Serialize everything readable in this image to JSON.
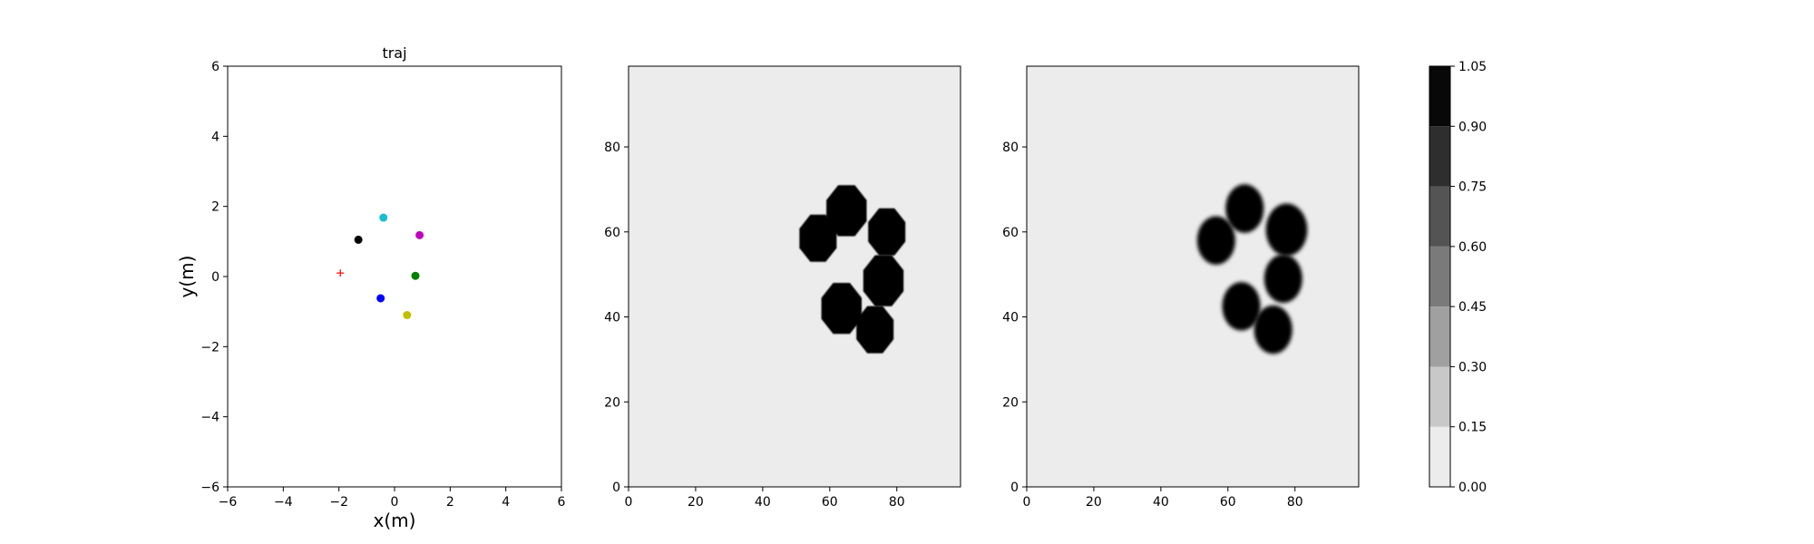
{
  "chart_data": [
    {
      "type": "scatter",
      "title": "traj",
      "xlabel": "x(m)",
      "ylabel": "y(m)",
      "xlim": [
        -6,
        6
      ],
      "ylim": [
        -6,
        6
      ],
      "xticks": [
        -6,
        -4,
        -2,
        0,
        2,
        4,
        6
      ],
      "yticks": [
        -6,
        -4,
        -2,
        0,
        2,
        4,
        6
      ],
      "points": [
        {
          "name": "cyan",
          "x": -0.4,
          "y": 1.68,
          "color": "#17becf",
          "marker": "circle"
        },
        {
          "name": "magenta",
          "x": 0.9,
          "y": 1.18,
          "color": "#bf00bf",
          "marker": "circle"
        },
        {
          "name": "black",
          "x": -1.3,
          "y": 1.05,
          "color": "#000000",
          "marker": "circle"
        },
        {
          "name": "green",
          "x": 0.75,
          "y": 0.02,
          "color": "#008000",
          "marker": "circle"
        },
        {
          "name": "blue",
          "x": -0.5,
          "y": -0.62,
          "color": "#0000ff",
          "marker": "circle"
        },
        {
          "name": "olive",
          "x": 0.45,
          "y": -1.1,
          "color": "#bfbf00",
          "marker": "circle"
        },
        {
          "name": "target",
          "x": -1.95,
          "y": 0.1,
          "color": "#ff0000",
          "marker": "plus"
        }
      ]
    },
    {
      "type": "heatmap",
      "title": "",
      "xlim": [
        0,
        99
      ],
      "ylim": [
        0,
        99
      ],
      "xticks": [
        0,
        20,
        40,
        60,
        80
      ],
      "yticks": [
        0,
        20,
        40,
        60,
        80
      ],
      "background_value": 0.05,
      "blobs": [
        {
          "x": 65,
          "y": 65,
          "r": 6.5,
          "shape": "octagon"
        },
        {
          "x": 56.5,
          "y": 58.5,
          "r": 6,
          "shape": "octagon"
        },
        {
          "x": 77,
          "y": 60,
          "r": 6,
          "shape": "octagon"
        },
        {
          "x": 76,
          "y": 48.5,
          "r": 6.5,
          "shape": "octagon"
        },
        {
          "x": 63.5,
          "y": 42,
          "r": 6.5,
          "shape": "octagon"
        },
        {
          "x": 73.5,
          "y": 37,
          "r": 6,
          "shape": "octagon"
        }
      ]
    },
    {
      "type": "heatmap",
      "title": "",
      "xlim": [
        0,
        99
      ],
      "ylim": [
        0,
        99
      ],
      "xticks": [
        0,
        20,
        40,
        60,
        80
      ],
      "yticks": [
        0,
        20,
        40,
        60,
        80
      ],
      "background_value": 0.05,
      "blobs": [
        {
          "x": 65,
          "y": 65.5,
          "r": 6,
          "shape": "blur"
        },
        {
          "x": 56.5,
          "y": 58,
          "r": 6,
          "shape": "blur"
        },
        {
          "x": 77.5,
          "y": 60.5,
          "r": 6.5,
          "shape": "blur"
        },
        {
          "x": 76.5,
          "y": 49,
          "r": 6,
          "shape": "blur"
        },
        {
          "x": 64,
          "y": 42.5,
          "r": 6,
          "shape": "blur"
        },
        {
          "x": 73.5,
          "y": 37,
          "r": 6,
          "shape": "blur"
        }
      ]
    },
    {
      "type": "colorbar",
      "levels": [
        0.0,
        0.15,
        0.3,
        0.45,
        0.6,
        0.75,
        0.9,
        1.05
      ],
      "tick_labels": [
        "0.00",
        "0.15",
        "0.30",
        "0.45",
        "0.60",
        "0.75",
        "0.90",
        "1.05"
      ],
      "colors": [
        "#ececec",
        "#c8c8c8",
        "#a0a0a0",
        "#7a7a7a",
        "#545454",
        "#2e2e2e",
        "#080808"
      ]
    }
  ]
}
